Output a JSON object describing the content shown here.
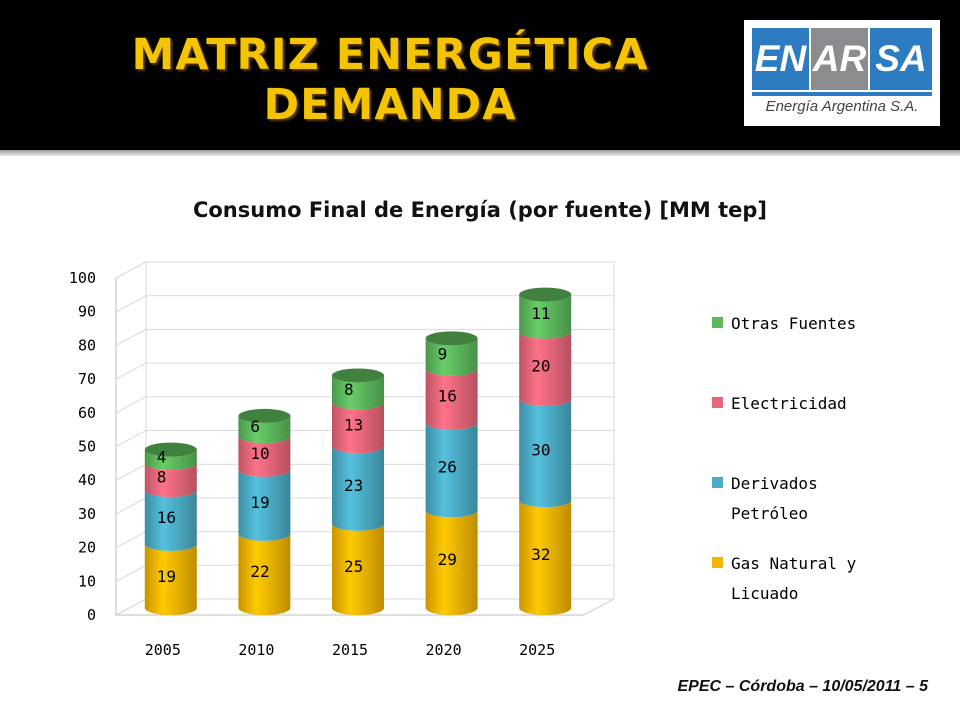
{
  "slide": {
    "title_line1": "MATRIZ ENERGÉTICA",
    "title_line2": "DEMANDA",
    "footer": "EPEC – Córdoba – 10/05/2011 – 5",
    "title_color": "#f4c400",
    "header_bg": "#000000"
  },
  "logo": {
    "part1": "EN",
    "part2": "AR",
    "part3": "SA",
    "subtitle": "Energía Argentina S.A.",
    "blue": "#2d7cc2",
    "gray": "#8a8c8f"
  },
  "chart_data": {
    "type": "bar",
    "stacked": true,
    "style": "3d-cylinder",
    "title": "Consumo Final de Energía (por fuente) [MM tep]",
    "categories": [
      "2005",
      "2010",
      "2015",
      "2020",
      "2025"
    ],
    "series": [
      {
        "name": "Gas Natural y Licuado",
        "values": [
          19,
          22,
          25,
          29,
          32
        ],
        "color": "#f5b400"
      },
      {
        "name": "Derivados Petróleo",
        "values": [
          16,
          19,
          23,
          26,
          30
        ],
        "color": "#4bacc6"
      },
      {
        "name": "Electricidad",
        "values": [
          8,
          10,
          13,
          16,
          20
        ],
        "color": "#e8667a"
      },
      {
        "name": "Otras Fuentes",
        "values": [
          4,
          6,
          8,
          9,
          11
        ],
        "color": "#5cb85c"
      }
    ],
    "ylim": [
      0,
      100
    ],
    "yticks": [
      0,
      10,
      20,
      30,
      40,
      50,
      60,
      70,
      80,
      90,
      100
    ],
    "grid": true,
    "legend_position": "right",
    "legend_order": [
      "Otras Fuentes",
      "Electricidad",
      "Derivados Petróleo",
      "Gas Natural y Licuado"
    ]
  }
}
